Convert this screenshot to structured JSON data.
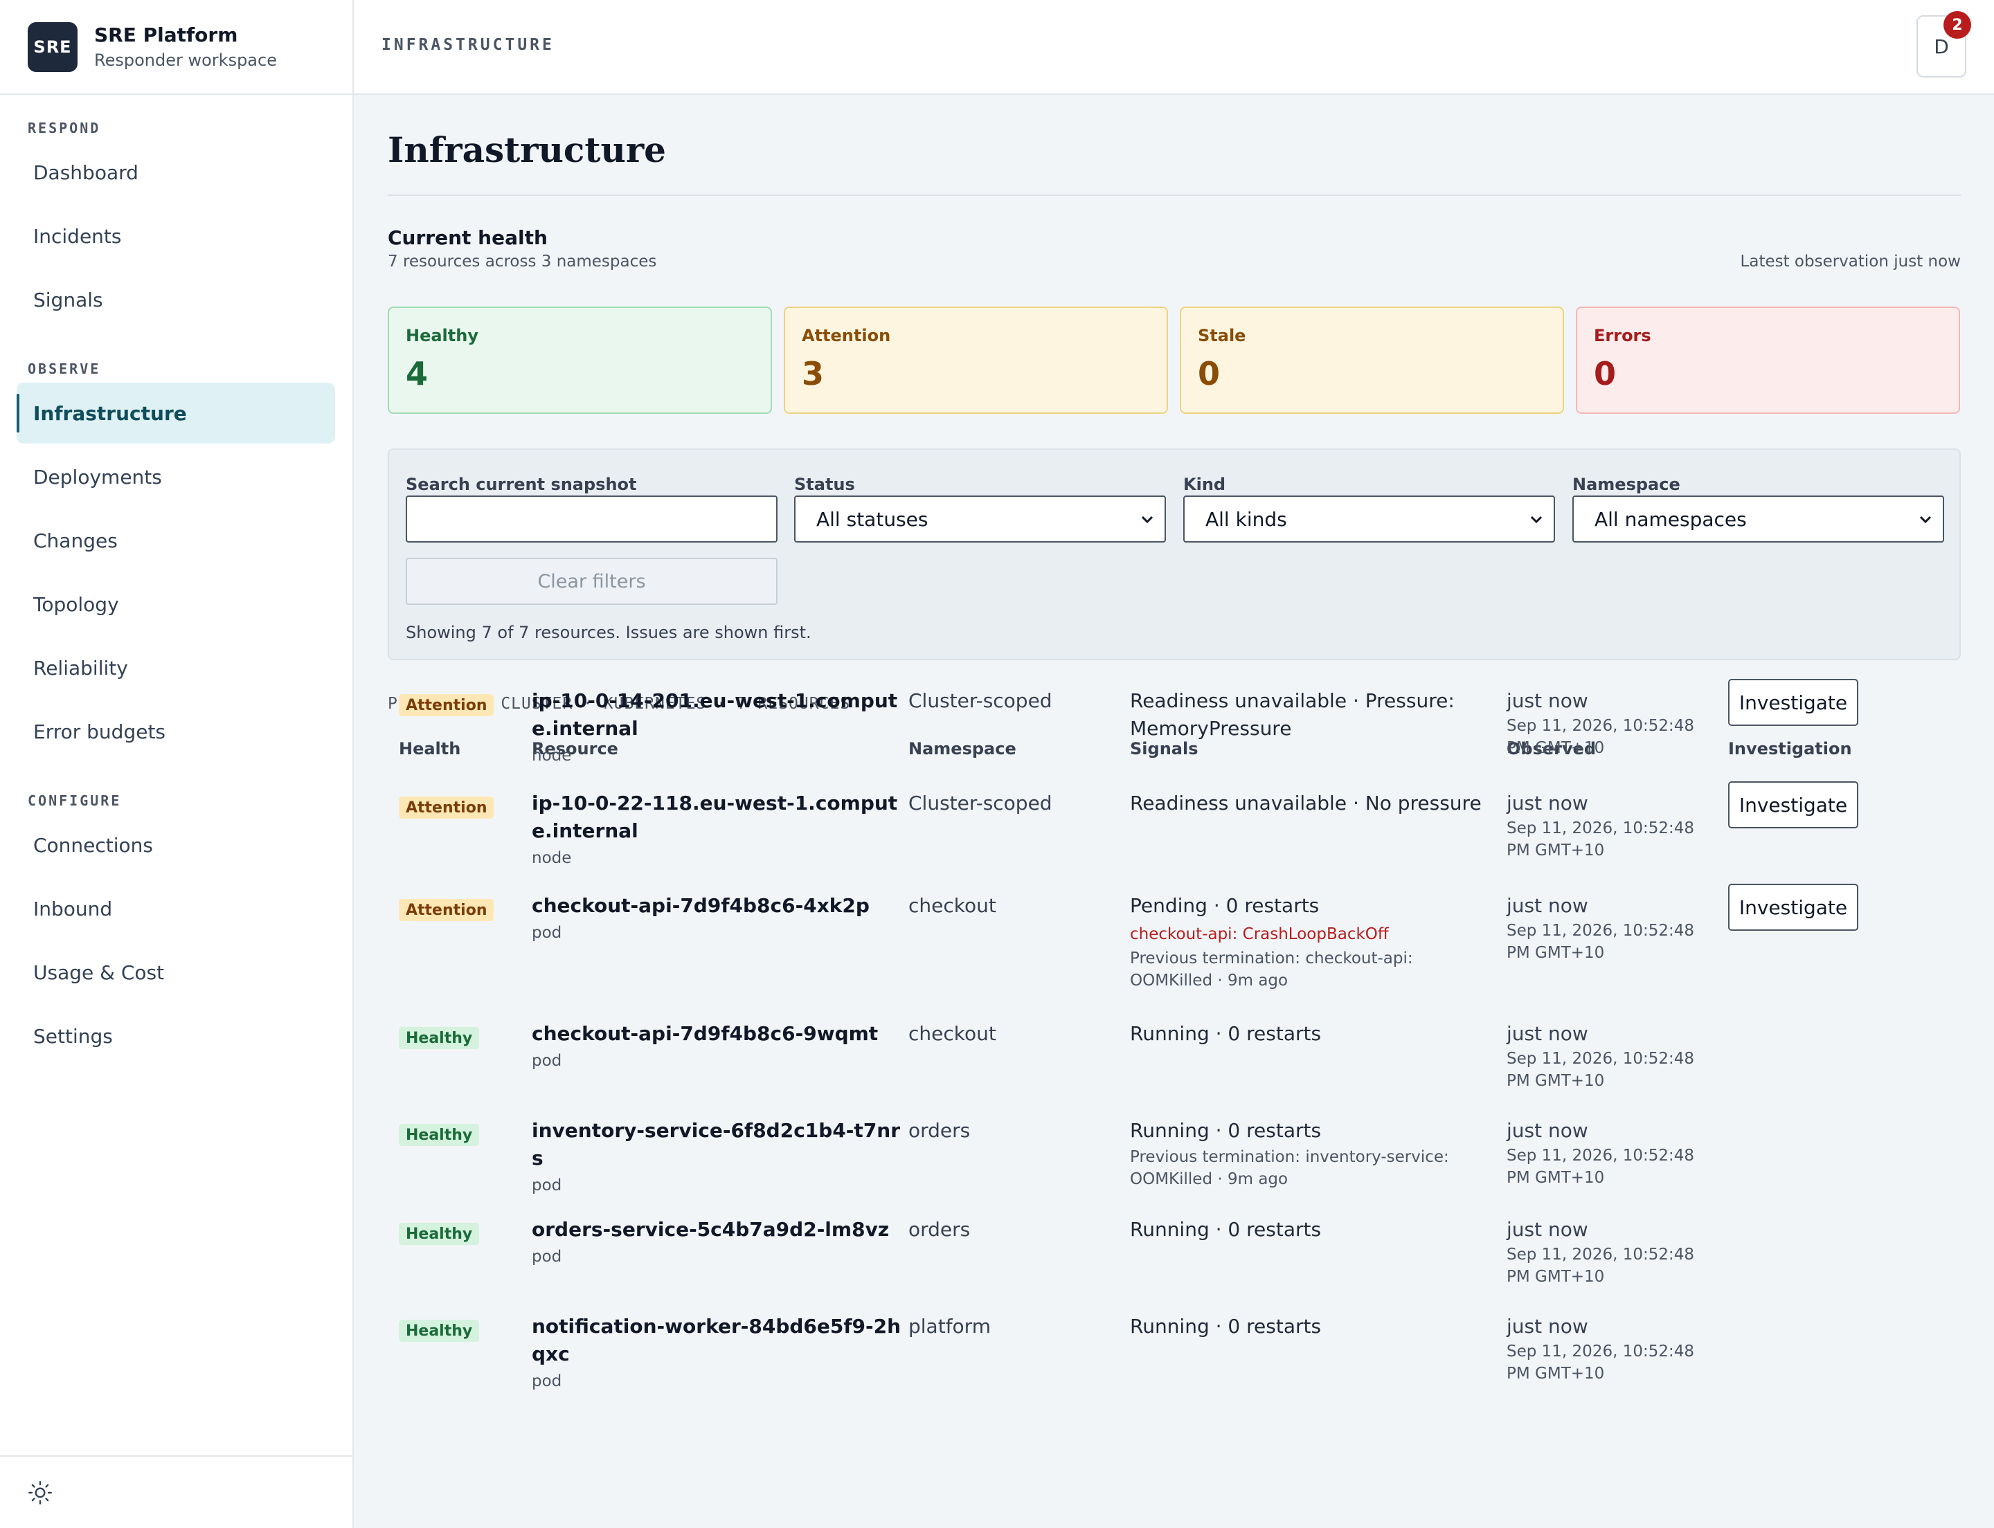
{
  "brand": {
    "logo_text": "SRE",
    "title": "SRE Platform",
    "subtitle": "Responder workspace"
  },
  "sidebar": {
    "sections": [
      {
        "label": "RESPOND",
        "items": [
          "Dashboard",
          "Incidents",
          "Signals"
        ]
      },
      {
        "label": "OBSERVE",
        "items": [
          "Infrastructure",
          "Deployments",
          "Changes",
          "Topology",
          "Reliability",
          "Error budgets"
        ]
      },
      {
        "label": "CONFIGURE",
        "items": [
          "Connections",
          "Inbound",
          "Usage & Cost",
          "Settings"
        ]
      }
    ],
    "active_item": "Infrastructure",
    "footer_icon": "sun-icon"
  },
  "topbar": {
    "section_label": "INFRASTRUCTURE",
    "avatar_initial": "D",
    "notification_count": "2"
  },
  "page": {
    "title": "Infrastructure",
    "health": {
      "title": "Current health",
      "subtitle": "7 resources across 3 namespaces",
      "latest": "Latest observation just now",
      "stats": [
        {
          "label": "Healthy",
          "value": "4",
          "color": "#1b6b3a"
        },
        {
          "label": "Attention",
          "value": "3",
          "color": "#8a4d07"
        },
        {
          "label": "Stale",
          "value": "0",
          "color": "#8a4d07"
        },
        {
          "label": "Errors",
          "value": "0",
          "color": "#a61b1b"
        }
      ]
    },
    "filters": {
      "search_label": "Search current snapshot",
      "search_value": "",
      "status_label": "Status",
      "status_value": "All statuses",
      "kind_label": "Kind",
      "kind_value": "All kinds",
      "namespace_label": "Namespace",
      "namespace_value": "All namespaces",
      "clear_label": "Clear filters",
      "showing_text": "Showing 7 of 7 resources. Issues are shown first."
    },
    "cluster_label": "PRODUCTION CLUSTER · KUBERNETES · 7 RESOURCES",
    "table": {
      "columns": [
        "Health",
        "Resource",
        "Namespace",
        "Signals",
        "Observed",
        "Investigation"
      ],
      "investigate_label": "Investigate",
      "rows": [
        {
          "health": "Attention",
          "name": "ip-10-0-14-201.eu-west-1.compute.internal",
          "kind": "node",
          "namespace": "Cluster-scoped",
          "signal": "Readiness unavailable · Pressure: MemoryPressure",
          "signal_error": "",
          "signal_note": "",
          "observed": "just now",
          "observed_at": "Sep 11, 2026, 10:52:48 PM GMT+10",
          "investigate": true
        },
        {
          "health": "Attention",
          "name": "ip-10-0-22-118.eu-west-1.compute.internal",
          "kind": "node",
          "namespace": "Cluster-scoped",
          "signal": "Readiness unavailable · No pressure",
          "signal_error": "",
          "signal_note": "",
          "observed": "just now",
          "observed_at": "Sep 11, 2026, 10:52:48 PM GMT+10",
          "investigate": true
        },
        {
          "health": "Attention",
          "name": "checkout-api-7d9f4b8c6-4xk2p",
          "kind": "pod",
          "namespace": "checkout",
          "signal": "Pending · 0 restarts",
          "signal_error": "checkout-api: CrashLoopBackOff",
          "signal_note": "Previous termination: checkout-api: OOMKilled · 9m ago",
          "observed": "just now",
          "observed_at": "Sep 11, 2026, 10:52:48 PM GMT+10",
          "investigate": true
        },
        {
          "health": "Healthy",
          "name": "checkout-api-7d9f4b8c6-9wqmt",
          "kind": "pod",
          "namespace": "checkout",
          "signal": "Running · 0 restarts",
          "signal_error": "",
          "signal_note": "",
          "observed": "just now",
          "observed_at": "Sep 11, 2026, 10:52:48 PM GMT+10",
          "investigate": false
        },
        {
          "health": "Healthy",
          "name": "inventory-service-6f8d2c1b4-t7nrs",
          "kind": "pod",
          "namespace": "orders",
          "signal": "Running · 0 restarts",
          "signal_error": "",
          "signal_note": "Previous termination: inventory-service: OOMKilled · 9m ago",
          "observed": "just now",
          "observed_at": "Sep 11, 2026, 10:52:48 PM GMT+10",
          "investigate": false
        },
        {
          "health": "Healthy",
          "name": "orders-service-5c4b7a9d2-lm8vz",
          "kind": "pod",
          "namespace": "orders",
          "signal": "Running · 0 restarts",
          "signal_error": "",
          "signal_note": "",
          "observed": "just now",
          "observed_at": "Sep 11, 2026, 10:52:48 PM GMT+10",
          "investigate": false
        },
        {
          "health": "Healthy",
          "name": "notification-worker-84bd6e5f9-2hqxc",
          "kind": "pod",
          "namespace": "platform",
          "signal": "Running · 0 restarts",
          "signal_error": "",
          "signal_note": "",
          "observed": "just now",
          "observed_at": "Sep 11, 2026, 10:52:48 PM GMT+10",
          "investigate": false
        }
      ]
    }
  }
}
